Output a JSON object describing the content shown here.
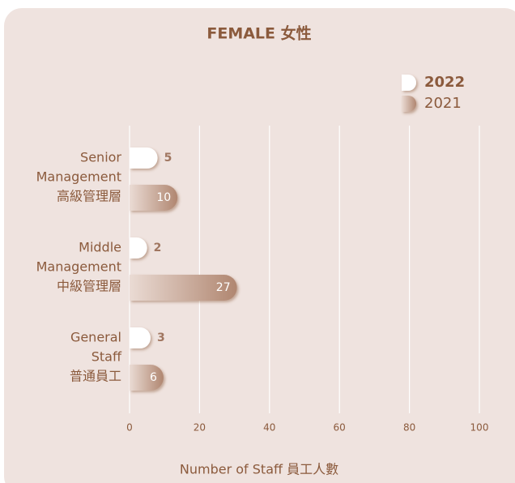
{
  "chart_data": {
    "type": "bar",
    "orientation": "horizontal",
    "title": "FEMALE 女性",
    "categories": [
      [
        "Senior",
        "Management",
        "高級管理層"
      ],
      [
        "Middle",
        "Management",
        "中級管理層"
      ],
      [
        "General",
        "Staff",
        "普通員工"
      ]
    ],
    "series": [
      {
        "name": "2022",
        "color": "#ffffff",
        "values": [
          5,
          2,
          3
        ]
      },
      {
        "name": "2021",
        "color": "#b08670",
        "values": [
          10,
          27,
          6
        ]
      }
    ],
    "xlim": [
      0,
      100
    ],
    "xticks": [
      0,
      20,
      40,
      60,
      80,
      100
    ],
    "grid": true,
    "xlabel": "Number of Staff 員工人數",
    "legend": "upper right"
  }
}
